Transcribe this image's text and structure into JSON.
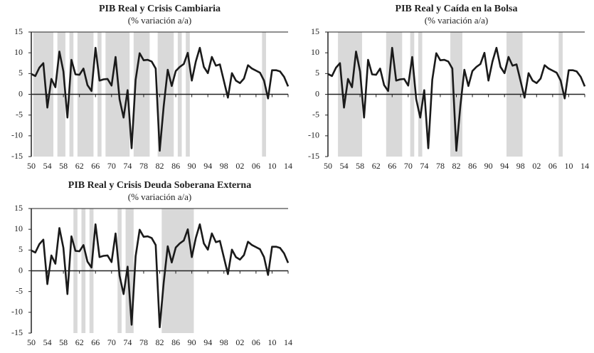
{
  "chart_data": [
    {
      "type": "line",
      "title": "PIB Real y Crisis Cambiaria",
      "subtitle": "(% variación a/a)",
      "x": [
        1950,
        1951,
        1952,
        1953,
        1954,
        1955,
        1956,
        1957,
        1958,
        1959,
        1960,
        1961,
        1962,
        1963,
        1964,
        1965,
        1966,
        1967,
        1968,
        1969,
        1970,
        1971,
        1972,
        1973,
        1974,
        1975,
        1976,
        1977,
        1978,
        1979,
        1980,
        1981,
        1982,
        1983,
        1984,
        1985,
        1986,
        1987,
        1988,
        1989,
        1990,
        1991,
        1992,
        1993,
        1994,
        1995,
        1996,
        1997,
        1998,
        1999,
        2000,
        2001,
        2002,
        2003,
        2004,
        2005,
        2006,
        2007,
        2008,
        2009,
        2010,
        2011,
        2012,
        2013,
        2014
      ],
      "values": [
        4.9,
        4.4,
        6.4,
        7.5,
        -3.2,
        3.7,
        1.7,
        10.3,
        5.5,
        -5.6,
        8.3,
        4.8,
        4.7,
        6.2,
        2.2,
        0.8,
        11.2,
        3.3,
        3.6,
        3.7,
        2.1,
        9.0,
        -1.2,
        -5.6,
        1.0,
        -13.0,
        3.5,
        9.9,
        8.2,
        8.3,
        7.9,
        6.2,
        -13.6,
        -2.8,
        5.9,
        2.0,
        5.6,
        6.6,
        7.3,
        10.0,
        3.3,
        7.9,
        11.2,
        6.6,
        5.1,
        9.0,
        6.9,
        7.2,
        3.2,
        -0.8,
        5.1,
        3.3,
        2.7,
        3.8,
        7.0,
        6.2,
        5.7,
        5.2,
        3.3,
        -1.0,
        5.8,
        5.8,
        5.5,
        4.2,
        1.9
      ],
      "color": "#1a1a1a",
      "shaded": [
        [
          1950.5,
          1955.5
        ],
        [
          1956.5,
          1958.5
        ],
        [
          1959.5,
          1960.5
        ],
        [
          1961.5,
          1965.5
        ],
        [
          1966.5,
          1967.5
        ],
        [
          1968.5,
          1974.5
        ],
        [
          1975.5,
          1979.5
        ],
        [
          1981.5,
          1985.5
        ],
        [
          1986.5,
          1987.5
        ],
        [
          1988.5,
          1989.5
        ],
        [
          2007.5,
          2008.5
        ]
      ],
      "shade_color": "#d9d9d9",
      "xlim": [
        1950,
        2014
      ],
      "ylim": [
        -15,
        15
      ],
      "xticks": [
        {
          "value": 1950,
          "label": "50"
        },
        {
          "value": 1954,
          "label": "54"
        },
        {
          "value": 1958,
          "label": "58"
        },
        {
          "value": 1962,
          "label": "62"
        },
        {
          "value": 1966,
          "label": "66"
        },
        {
          "value": 1970,
          "label": "70"
        },
        {
          "value": 1974,
          "label": "74"
        },
        {
          "value": 1978,
          "label": "78"
        },
        {
          "value": 1982,
          "label": "82"
        },
        {
          "value": 1986,
          "label": "86"
        },
        {
          "value": 1990,
          "label": "90"
        },
        {
          "value": 1994,
          "label": "94"
        },
        {
          "value": 1998,
          "label": "98"
        },
        {
          "value": 2002,
          "label": "02"
        },
        {
          "value": 2006,
          "label": "06"
        },
        {
          "value": 2010,
          "label": "10"
        },
        {
          "value": 2014,
          "label": "14"
        }
      ],
      "yticks": [
        -15,
        -10,
        -5,
        0,
        5,
        10,
        15
      ]
    },
    {
      "type": "line",
      "title": "PIB Real y Caída en la Bolsa",
      "subtitle": "(% variación a/a)",
      "x": [
        1950,
        1951,
        1952,
        1953,
        1954,
        1955,
        1956,
        1957,
        1958,
        1959,
        1960,
        1961,
        1962,
        1963,
        1964,
        1965,
        1966,
        1967,
        1968,
        1969,
        1970,
        1971,
        1972,
        1973,
        1974,
        1975,
        1976,
        1977,
        1978,
        1979,
        1980,
        1981,
        1982,
        1983,
        1984,
        1985,
        1986,
        1987,
        1988,
        1989,
        1990,
        1991,
        1992,
        1993,
        1994,
        1995,
        1996,
        1997,
        1998,
        1999,
        2000,
        2001,
        2002,
        2003,
        2004,
        2005,
        2006,
        2007,
        2008,
        2009,
        2010,
        2011,
        2012,
        2013,
        2014
      ],
      "values": [
        4.9,
        4.4,
        6.4,
        7.5,
        -3.2,
        3.7,
        1.7,
        10.3,
        5.5,
        -5.6,
        8.3,
        4.8,
        4.7,
        6.2,
        2.2,
        0.8,
        11.2,
        3.3,
        3.6,
        3.7,
        2.1,
        9.0,
        -1.2,
        -5.6,
        1.0,
        -13.0,
        3.5,
        9.9,
        8.2,
        8.3,
        7.9,
        6.2,
        -13.6,
        -2.8,
        5.9,
        2.0,
        5.6,
        6.6,
        7.3,
        10.0,
        3.3,
        7.9,
        11.2,
        6.6,
        5.1,
        9.0,
        6.9,
        7.2,
        3.2,
        -0.8,
        5.1,
        3.3,
        2.7,
        3.8,
        7.0,
        6.2,
        5.7,
        5.2,
        3.3,
        -1.0,
        5.8,
        5.8,
        5.5,
        4.2,
        1.9
      ],
      "color": "#1a1a1a",
      "shaded": [
        [
          1952.5,
          1958.5
        ],
        [
          1964.5,
          1968.5
        ],
        [
          1970.5,
          1971.5
        ],
        [
          1972.5,
          1973.5
        ],
        [
          1980.5,
          1983.5
        ],
        [
          1994.5,
          1998.5
        ],
        [
          2007.5,
          2008.5
        ]
      ],
      "shade_color": "#d9d9d9",
      "xlim": [
        1950,
        2014
      ],
      "ylim": [
        -15,
        15
      ],
      "xticks": [
        {
          "value": 1950,
          "label": "50"
        },
        {
          "value": 1954,
          "label": "54"
        },
        {
          "value": 1958,
          "label": "58"
        },
        {
          "value": 1962,
          "label": "62"
        },
        {
          "value": 1966,
          "label": "66"
        },
        {
          "value": 1970,
          "label": "70"
        },
        {
          "value": 1974,
          "label": "74"
        },
        {
          "value": 1978,
          "label": "78"
        },
        {
          "value": 1982,
          "label": "82"
        },
        {
          "value": 1986,
          "label": "86"
        },
        {
          "value": 1990,
          "label": "90"
        },
        {
          "value": 1994,
          "label": "94"
        },
        {
          "value": 1998,
          "label": "98"
        },
        {
          "value": 2002,
          "label": "02"
        },
        {
          "value": 2006,
          "label": "06"
        },
        {
          "value": 2010,
          "label": "10"
        },
        {
          "value": 2014,
          "label": "14"
        }
      ],
      "yticks": [
        -15,
        -10,
        -5,
        0,
        5,
        10,
        15
      ]
    },
    {
      "type": "line",
      "title": "PIB Real y Crisis Deuda Soberana Externa",
      "subtitle": "(% variación a/a)",
      "x": [
        1950,
        1951,
        1952,
        1953,
        1954,
        1955,
        1956,
        1957,
        1958,
        1959,
        1960,
        1961,
        1962,
        1963,
        1964,
        1965,
        1966,
        1967,
        1968,
        1969,
        1970,
        1971,
        1972,
        1973,
        1974,
        1975,
        1976,
        1977,
        1978,
        1979,
        1980,
        1981,
        1982,
        1983,
        1984,
        1985,
        1986,
        1987,
        1988,
        1989,
        1990,
        1991,
        1992,
        1993,
        1994,
        1995,
        1996,
        1997,
        1998,
        1999,
        2000,
        2001,
        2002,
        2003,
        2004,
        2005,
        2006,
        2007,
        2008,
        2009,
        2010,
        2011,
        2012,
        2013,
        2014
      ],
      "values": [
        4.9,
        4.4,
        6.4,
        7.5,
        -3.2,
        3.7,
        1.7,
        10.3,
        5.5,
        -5.6,
        8.3,
        4.8,
        4.7,
        6.2,
        2.2,
        0.8,
        11.2,
        3.3,
        3.6,
        3.7,
        2.1,
        9.0,
        -1.2,
        -5.6,
        1.0,
        -13.0,
        3.5,
        9.9,
        8.2,
        8.3,
        7.9,
        6.2,
        -13.6,
        -2.8,
        5.9,
        2.0,
        5.6,
        6.6,
        7.3,
        10.0,
        3.3,
        7.9,
        11.2,
        6.6,
        5.1,
        9.0,
        6.9,
        7.2,
        3.2,
        -0.8,
        5.1,
        3.3,
        2.7,
        3.8,
        7.0,
        6.2,
        5.7,
        5.2,
        3.3,
        -1.0,
        5.8,
        5.8,
        5.5,
        4.2,
        1.9
      ],
      "color": "#1a1a1a",
      "shaded": [
        [
          1960.5,
          1961.5
        ],
        [
          1962.5,
          1963.5
        ],
        [
          1964.5,
          1965.5
        ],
        [
          1971.5,
          1972.5
        ],
        [
          1973.5,
          1975.5
        ],
        [
          1982.5,
          1990.5
        ]
      ],
      "shade_color": "#d9d9d9",
      "xlim": [
        1950,
        2014
      ],
      "ylim": [
        -15,
        15
      ],
      "xticks": [
        {
          "value": 1950,
          "label": "50"
        },
        {
          "value": 1954,
          "label": "54"
        },
        {
          "value": 1958,
          "label": "58"
        },
        {
          "value": 1962,
          "label": "62"
        },
        {
          "value": 1966,
          "label": "66"
        },
        {
          "value": 1970,
          "label": "70"
        },
        {
          "value": 1974,
          "label": "74"
        },
        {
          "value": 1978,
          "label": "78"
        },
        {
          "value": 1982,
          "label": "82"
        },
        {
          "value": 1986,
          "label": "86"
        },
        {
          "value": 1990,
          "label": "90"
        },
        {
          "value": 1994,
          "label": "94"
        },
        {
          "value": 1998,
          "label": "98"
        },
        {
          "value": 2002,
          "label": "02"
        },
        {
          "value": 2006,
          "label": "06"
        },
        {
          "value": 2010,
          "label": "10"
        },
        {
          "value": 2014,
          "label": "14"
        }
      ],
      "yticks": [
        -15,
        -10,
        -5,
        0,
        5,
        10,
        15
      ]
    }
  ]
}
